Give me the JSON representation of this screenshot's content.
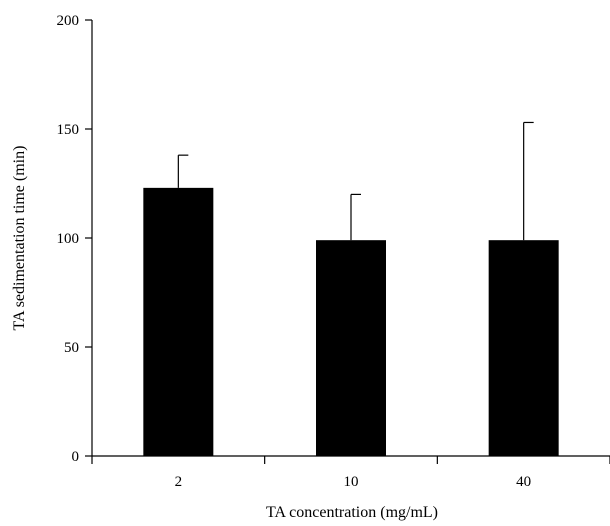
{
  "chart_data": {
    "type": "bar",
    "title": "",
    "xlabel": "TA concentration (mg/mL)",
    "ylabel": "TA sedimentation time (min)",
    "categories": [
      "2",
      "10",
      "40"
    ],
    "values": [
      123,
      99,
      99
    ],
    "error_upper": [
      15,
      21,
      54
    ],
    "ylim": [
      0,
      200
    ],
    "yticks": [
      0,
      50,
      100,
      150,
      200
    ],
    "colors": {
      "bar": "#000000",
      "axis": "#000000"
    },
    "grid": false,
    "legend": "none"
  }
}
